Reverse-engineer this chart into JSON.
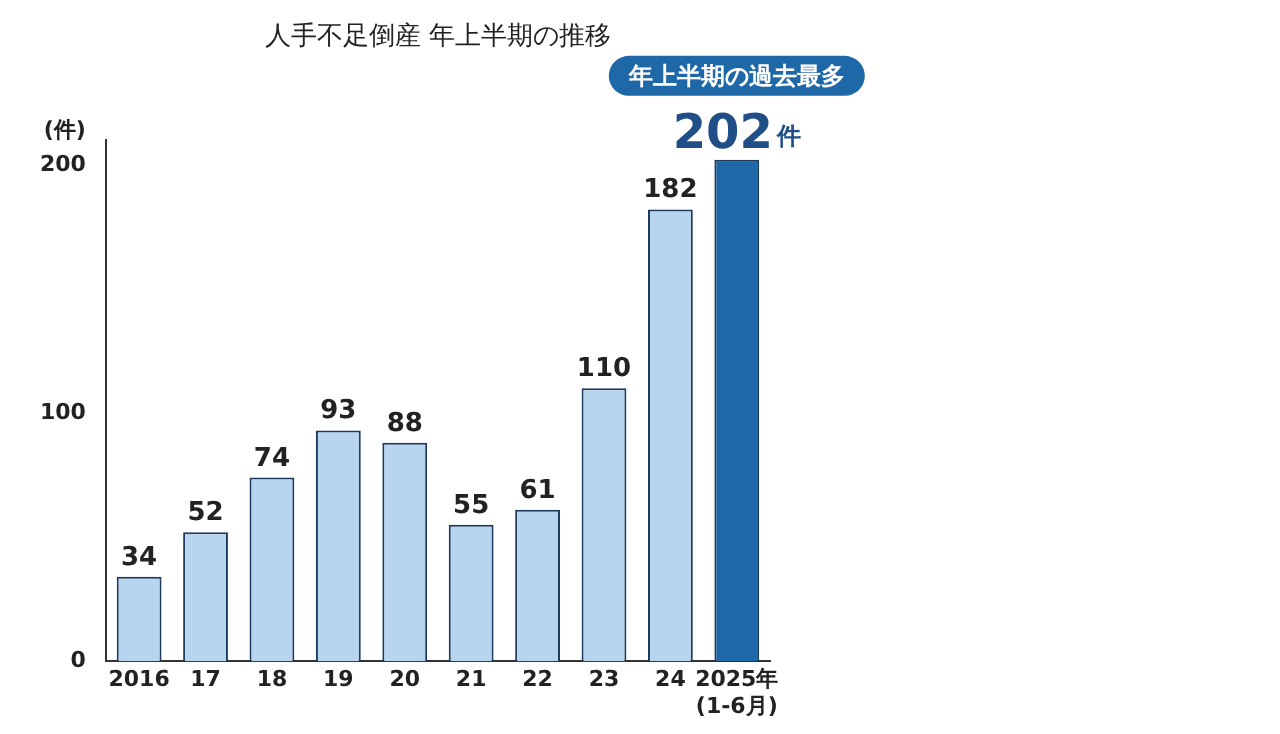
{
  "chart_data": {
    "type": "bar",
    "title": "人手不足倒産 年上半期の推移",
    "ylabel": "(件)",
    "categories": [
      "2016",
      "17",
      "18",
      "19",
      "20",
      "21",
      "22",
      "23",
      "24",
      "2025年\n(1-6月)"
    ],
    "values": [
      34,
      52,
      74,
      93,
      88,
      55,
      61,
      110,
      182,
      202
    ],
    "colors": [
      "#b8d5f0",
      "#b8d5f0",
      "#b8d5f0",
      "#b8d5f0",
      "#b8d5f0",
      "#b8d5f0",
      "#b8d5f0",
      "#b8d5f0",
      "#b8d5f0",
      "#1f68a8"
    ],
    "value_labels": [
      "34",
      "52",
      "74",
      "93",
      "88",
      "55",
      "61",
      "110",
      "182",
      "202件"
    ],
    "annotations": [
      {
        "text": "年上半期の過去最多",
        "x": "2025年\n(1-6月)",
        "y": 202
      }
    ],
    "ylim": [
      0,
      210
    ],
    "yticks": [
      0,
      100,
      200
    ],
    "grid": false,
    "legend": false
  }
}
